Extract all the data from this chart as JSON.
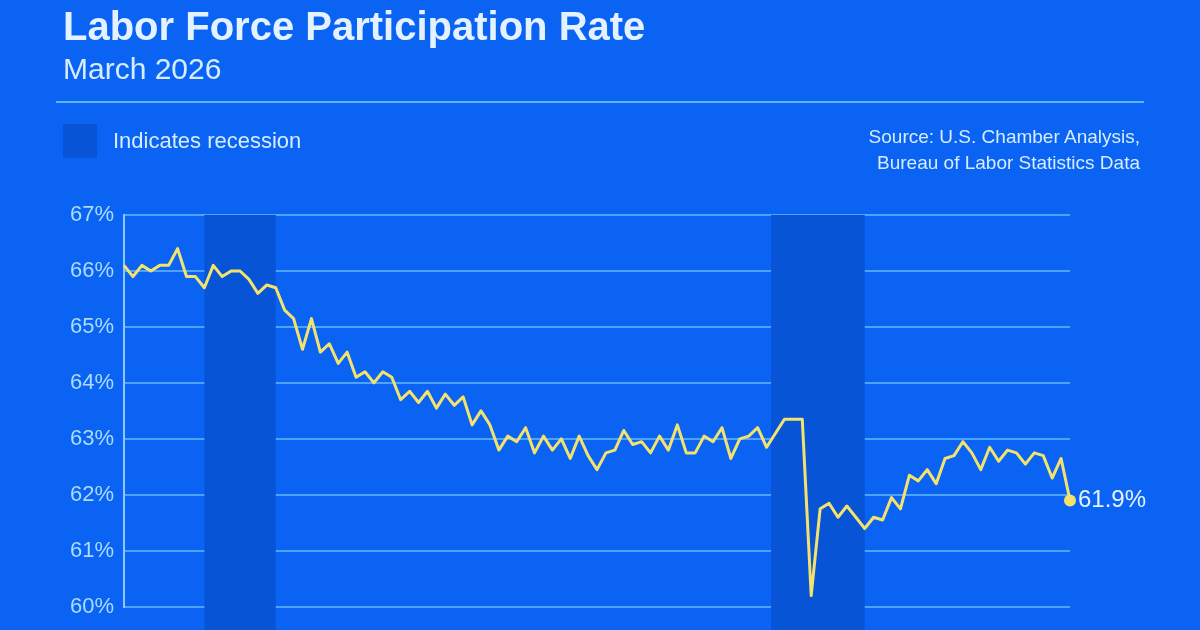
{
  "chart_data": {
    "type": "line",
    "title": "Labor Force Participation Rate",
    "subtitle": "March 2026",
    "categories": [
      null,
      null,
      null,
      null,
      null,
      null,
      null,
      null,
      null,
      null,
      null,
      null,
      null,
      null,
      null,
      null,
      null,
      null,
      null,
      null,
      null,
      null,
      null,
      null,
      null,
      null,
      null,
      null,
      null,
      null,
      null,
      null,
      null,
      null,
      null,
      null,
      null,
      null,
      null,
      null,
      null,
      null,
      null,
      null,
      null,
      null,
      null,
      null,
      null,
      null,
      null,
      null,
      null,
      null,
      null,
      null,
      null,
      null,
      null,
      null,
      null,
      null,
      null,
      null,
      null,
      null,
      null,
      null,
      null,
      null,
      null,
      null,
      null,
      null,
      null,
      null,
      null,
      null,
      null,
      null,
      null,
      null,
      null,
      null,
      null,
      null,
      null,
      null,
      null,
      null,
      null,
      null,
      null,
      null,
      null,
      null,
      null,
      null,
      null,
      null,
      null,
      null,
      null,
      null,
      null,
      null,
      null
    ],
    "series": [
      {
        "color": "#f3e26c",
        "values": [
          66.1,
          65.9,
          66.1,
          66.0,
          66.1,
          66.1,
          66.4,
          65.9,
          65.9,
          65.7,
          66.1,
          65.9,
          66.0,
          66.0,
          65.85,
          65.6,
          65.75,
          65.7,
          65.3,
          65.15,
          64.6,
          65.15,
          64.55,
          64.7,
          64.35,
          64.55,
          64.1,
          64.2,
          64.0,
          64.2,
          64.1,
          63.7,
          63.85,
          63.65,
          63.85,
          63.55,
          63.8,
          63.6,
          63.75,
          63.25,
          63.5,
          63.25,
          62.8,
          63.05,
          62.95,
          63.2,
          62.75,
          63.05,
          62.8,
          63.0,
          62.65,
          63.05,
          62.7,
          62.45,
          62.75,
          62.8,
          63.15,
          62.9,
          62.95,
          62.75,
          63.05,
          62.8,
          63.25,
          62.75,
          62.75,
          63.05,
          62.95,
          63.2,
          62.65,
          63.0,
          63.05,
          63.2,
          62.85,
          63.1,
          63.35,
          63.35,
          63.35,
          60.2,
          61.75,
          61.85,
          61.6,
          61.8,
          61.6,
          61.4,
          61.6,
          61.55,
          61.95,
          61.75,
          62.35,
          62.25,
          62.45,
          62.2,
          62.65,
          62.7,
          62.95,
          62.75,
          62.45,
          62.85,
          62.6,
          62.8,
          62.75,
          62.55,
          62.75,
          62.7,
          62.3,
          62.65,
          61.9
        ],
        "value_labels": [
          null,
          null,
          null,
          null,
          null,
          null,
          null,
          null,
          null,
          null,
          null,
          null,
          null,
          null,
          null,
          null,
          null,
          null,
          null,
          null,
          null,
          null,
          null,
          null,
          null,
          null,
          null,
          null,
          null,
          null,
          null,
          null,
          null,
          null,
          null,
          null,
          null,
          null,
          null,
          null,
          null,
          null,
          null,
          null,
          null,
          null,
          null,
          null,
          null,
          null,
          null,
          null,
          null,
          null,
          null,
          null,
          null,
          null,
          null,
          null,
          null,
          null,
          null,
          null,
          null,
          null,
          null,
          null,
          null,
          null,
          null,
          null,
          null,
          null,
          null,
          null,
          null,
          null,
          null,
          null,
          null,
          null,
          null,
          null,
          null,
          null,
          null,
          null,
          null,
          null,
          null,
          null,
          null,
          null,
          null,
          null,
          null,
          null,
          null,
          null,
          null,
          null,
          null,
          null,
          null,
          null,
          "61.9%"
        ]
      }
    ],
    "ylim": [
      60,
      67
    ],
    "yticks": [
      {
        "value": 60,
        "label": "60%"
      },
      {
        "value": 61,
        "label": "61%"
      },
      {
        "value": 62,
        "label": "62%"
      },
      {
        "value": 63,
        "label": "63%"
      },
      {
        "value": 64,
        "label": "64%"
      },
      {
        "value": 65,
        "label": "65%"
      },
      {
        "value": 66,
        "label": "66%"
      },
      {
        "value": 67,
        "label": "67%"
      }
    ],
    "tick_labels": "y",
    "grid": "y",
    "legend_title": "Indicates recession",
    "annotations": [
      "Source: U.S. Chamber Analysis, Bureau of Labor Statistics Data"
    ]
  }
}
